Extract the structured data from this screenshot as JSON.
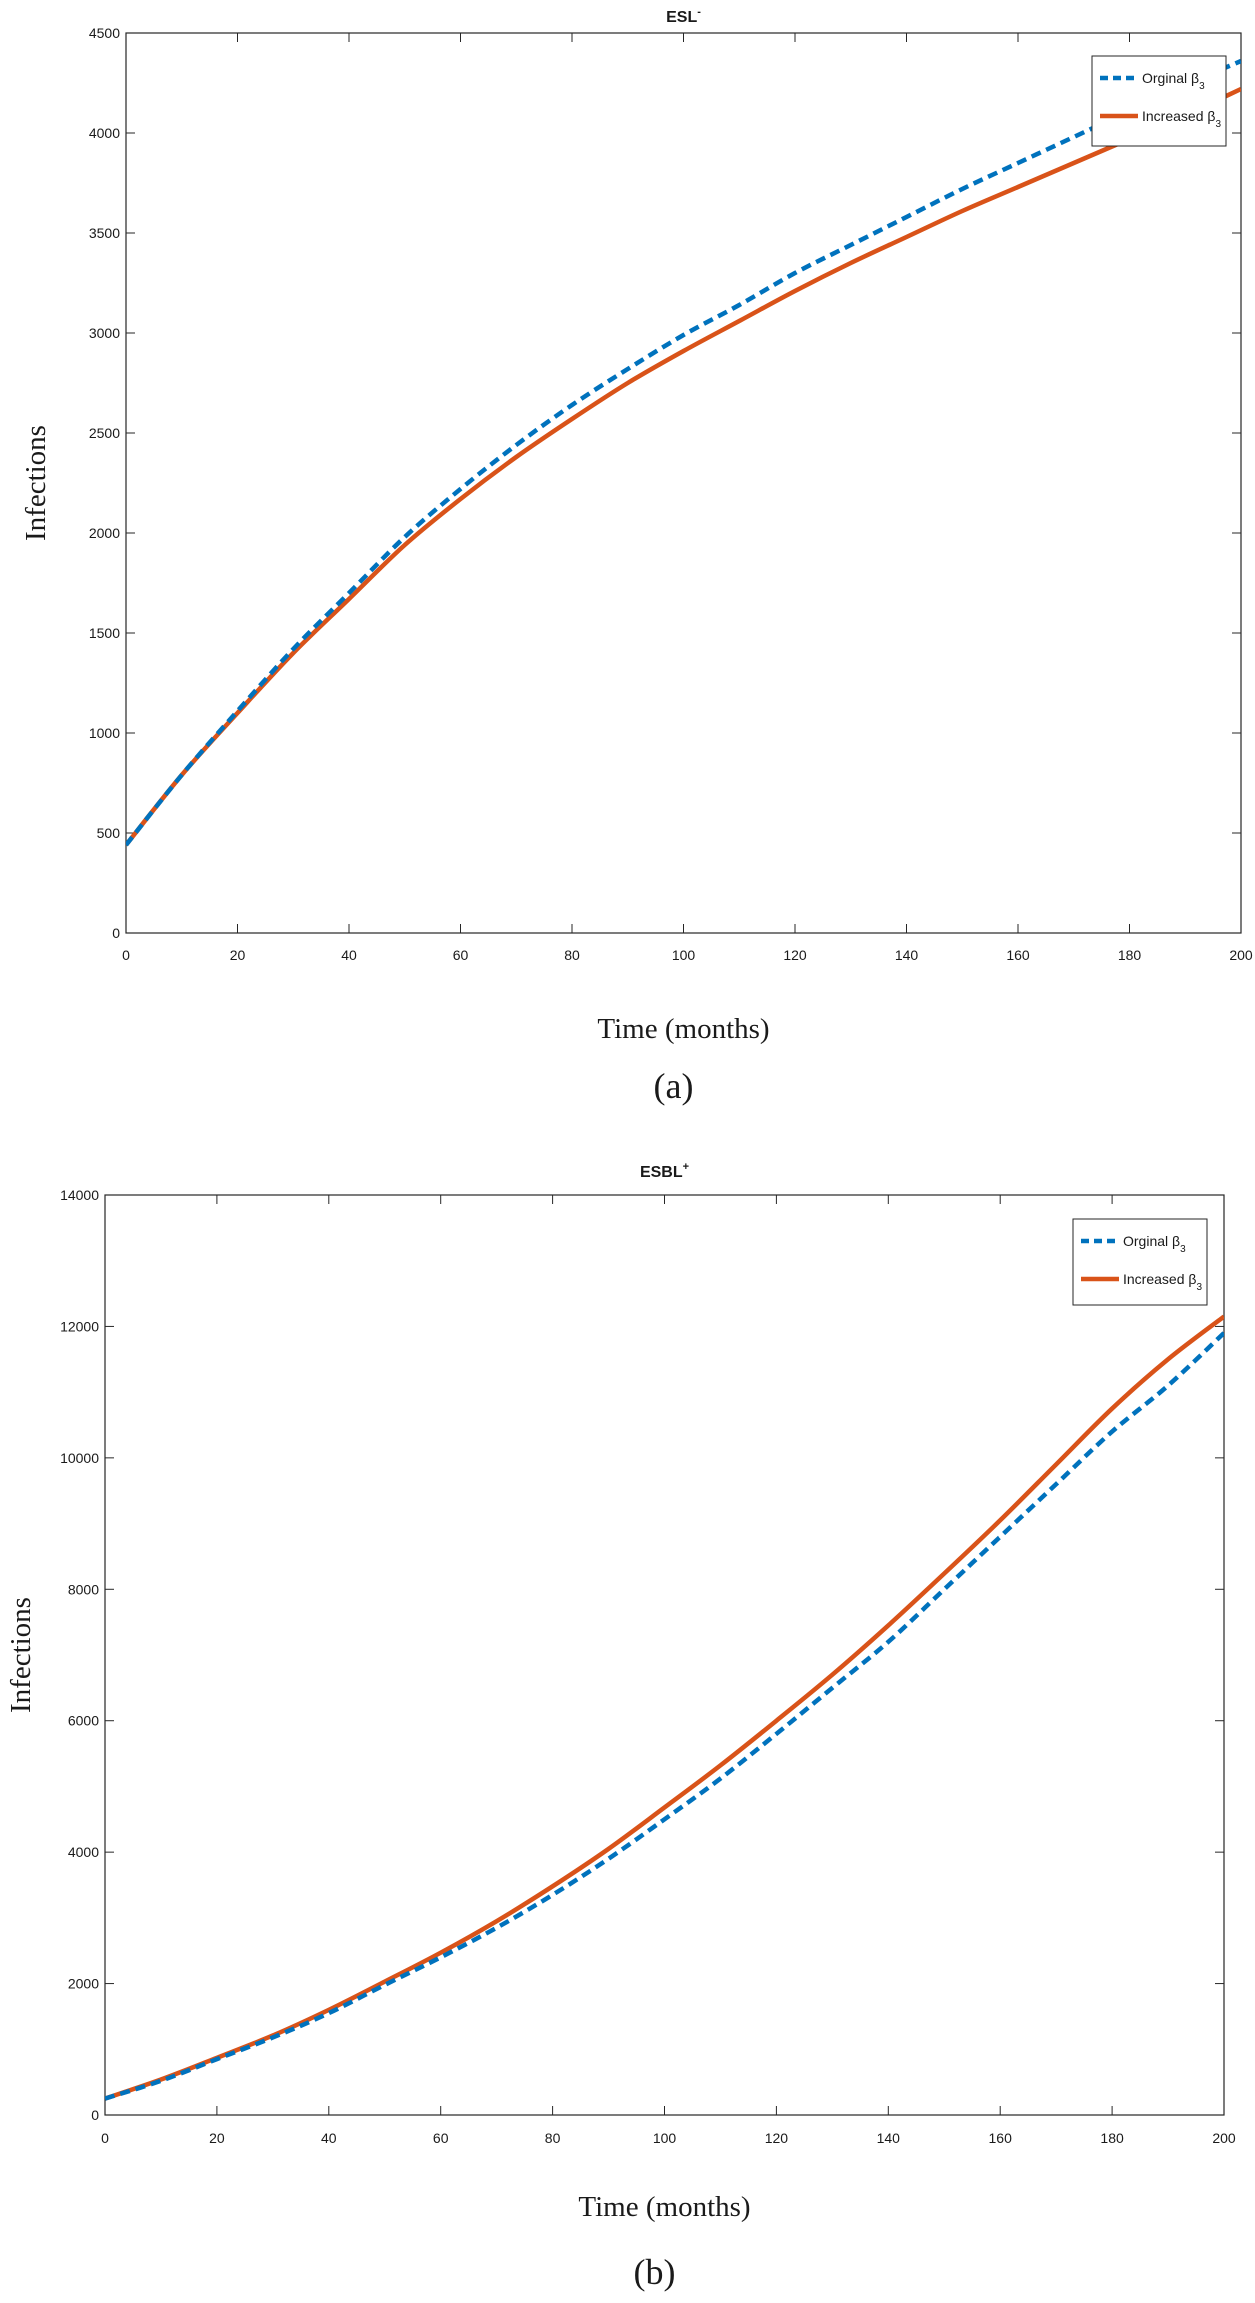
{
  "chart_data": [
    {
      "type": "line",
      "title": "ESL",
      "title_superscript": "-",
      "panel_label": "(a)",
      "xlabel": "Time (months)",
      "ylabel": "Infections",
      "xlim": [
        0,
        200
      ],
      "ylim": [
        0,
        4500
      ],
      "xticks": [
        0,
        20,
        40,
        60,
        80,
        100,
        120,
        140,
        160,
        180,
        200
      ],
      "yticks": [
        0,
        500,
        1000,
        1500,
        2000,
        2500,
        3000,
        3500,
        4000,
        4500
      ],
      "grid": false,
      "legend_position": "top-right",
      "series": [
        {
          "name": "Orginal β",
          "name_subscript": "3",
          "color": "#0072BD",
          "style": "dashed",
          "x": [
            0,
            10,
            20,
            30,
            40,
            50,
            60,
            70,
            80,
            90,
            100,
            110,
            120,
            130,
            140,
            150,
            160,
            170,
            180,
            190,
            200
          ],
          "y": [
            440,
            790,
            1110,
            1420,
            1700,
            1980,
            2220,
            2440,
            2640,
            2820,
            2990,
            3140,
            3300,
            3440,
            3580,
            3720,
            3850,
            3980,
            4110,
            4240,
            4360
          ]
        },
        {
          "name": "Increased β",
          "name_subscript": "3",
          "color": "#D95319",
          "style": "solid",
          "x": [
            0,
            10,
            20,
            30,
            40,
            50,
            60,
            70,
            80,
            90,
            100,
            110,
            120,
            130,
            140,
            150,
            160,
            170,
            180,
            190,
            200
          ],
          "y": [
            440,
            790,
            1100,
            1400,
            1670,
            1940,
            2170,
            2380,
            2570,
            2750,
            2910,
            3060,
            3210,
            3350,
            3480,
            3610,
            3730,
            3850,
            3970,
            4090,
            4220
          ]
        }
      ]
    },
    {
      "type": "line",
      "title": "ESBL",
      "title_superscript": "+",
      "panel_label": "(b)",
      "xlabel": "Time (months)",
      "ylabel": "Infections",
      "xlim": [
        0,
        200
      ],
      "ylim": [
        0,
        14000
      ],
      "xticks": [
        0,
        20,
        40,
        60,
        80,
        100,
        120,
        140,
        160,
        180,
        200
      ],
      "yticks": [
        0,
        2000,
        4000,
        6000,
        8000,
        10000,
        12000,
        14000
      ],
      "grid": false,
      "legend_position": "top-right",
      "series": [
        {
          "name": "Orginal β",
          "name_subscript": "3",
          "color": "#0072BD",
          "style": "dashed",
          "x": [
            0,
            10,
            20,
            30,
            40,
            50,
            60,
            70,
            80,
            90,
            100,
            110,
            120,
            130,
            140,
            150,
            160,
            170,
            180,
            190,
            200
          ],
          "y": [
            250,
            520,
            850,
            1180,
            1550,
            1980,
            2400,
            2850,
            3350,
            3900,
            4500,
            5120,
            5800,
            6500,
            7200,
            8000,
            8800,
            9600,
            10400,
            11100,
            11900
          ]
        },
        {
          "name": "Increased β",
          "name_subscript": "3",
          "color": "#D95319",
          "style": "solid",
          "x": [
            0,
            10,
            20,
            30,
            40,
            50,
            60,
            70,
            80,
            90,
            100,
            110,
            120,
            130,
            140,
            150,
            160,
            170,
            180,
            190,
            200
          ],
          "y": [
            250,
            540,
            870,
            1210,
            1600,
            2030,
            2470,
            2950,
            3480,
            4050,
            4680,
            5320,
            6000,
            6700,
            7450,
            8240,
            9050,
            9900,
            10750,
            11500,
            12150
          ]
        }
      ]
    }
  ]
}
